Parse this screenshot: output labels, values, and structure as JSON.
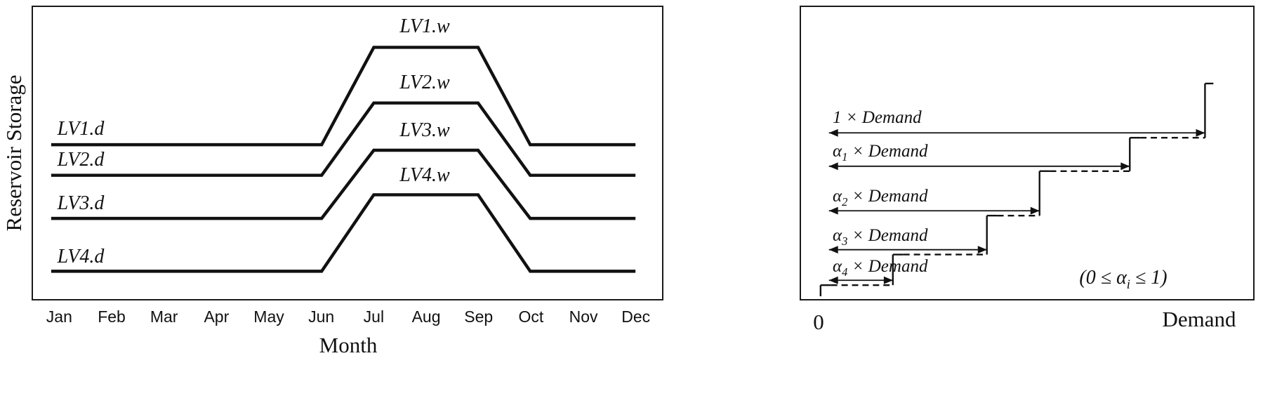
{
  "left_panel": {
    "y_axis_label": "Reservoir Storage",
    "x_axis_label": "Month",
    "months": [
      "Jan",
      "Feb",
      "Mar",
      "Apr",
      "May",
      "Jun",
      "Jul",
      "Aug",
      "Sep",
      "Oct",
      "Nov",
      "Dec"
    ],
    "wet_labels": [
      "LV1.w",
      "LV2.w",
      "LV3.w",
      "LV4.w"
    ],
    "dry_labels": [
      "LV1.d",
      "LV2.d",
      "LV3.d",
      "LV4.d"
    ]
  },
  "right_panel": {
    "origin_label": "0",
    "x_axis_label": "Demand",
    "arrow_labels": [
      {
        "pre": "1",
        "sub": "",
        "post": " × Demand"
      },
      {
        "pre": "α",
        "sub": "1",
        "post": " × Demand"
      },
      {
        "pre": "α",
        "sub": "2",
        "post": " × Demand"
      },
      {
        "pre": "α",
        "sub": "3",
        "post": " × Demand"
      },
      {
        "pre": "α",
        "sub": "4",
        "post": " × Demand"
      }
    ],
    "constraint": {
      "pre": "(0 ≤ α",
      "sub": "i",
      "post": " ≤ 1)"
    }
  },
  "colors": {
    "line": "#111111",
    "border": "#1a1a1a",
    "background": "#ffffff"
  },
  "chart_data": [
    {
      "type": "line",
      "xlabel": "Month",
      "ylabel": "Reservoir Storage",
      "categories": [
        "Jan",
        "Feb",
        "Mar",
        "Apr",
        "May",
        "Jun",
        "Jul",
        "Aug",
        "Sep",
        "Oct",
        "Nov",
        "Dec"
      ],
      "ylim": [
        0,
        1
      ],
      "grid": false,
      "series": [
        {
          "name": "LV1",
          "dry_label": "LV1.d",
          "wet_label": "LV1.w",
          "dry_value": 0.53,
          "wet_value": 0.88,
          "values": [
            0.53,
            0.53,
            0.53,
            0.53,
            0.53,
            0.53,
            0.88,
            0.88,
            0.88,
            0.53,
            0.53,
            0.53
          ]
        },
        {
          "name": "LV2",
          "dry_label": "LV2.d",
          "wet_label": "LV2.w",
          "dry_value": 0.42,
          "wet_value": 0.68,
          "values": [
            0.42,
            0.42,
            0.42,
            0.42,
            0.42,
            0.42,
            0.68,
            0.68,
            0.68,
            0.42,
            0.42,
            0.42
          ]
        },
        {
          "name": "LV3",
          "dry_label": "LV3.d",
          "wet_label": "LV3.w",
          "dry_value": 0.265,
          "wet_value": 0.51,
          "values": [
            0.265,
            0.265,
            0.265,
            0.265,
            0.265,
            0.265,
            0.51,
            0.51,
            0.51,
            0.265,
            0.265,
            0.265
          ]
        },
        {
          "name": "LV4",
          "dry_label": "LV4.d",
          "wet_label": "LV4.w",
          "dry_value": 0.075,
          "wet_value": 0.35,
          "values": [
            0.075,
            0.075,
            0.075,
            0.075,
            0.075,
            0.075,
            0.35,
            0.35,
            0.35,
            0.075,
            0.075,
            0.075
          ]
        }
      ]
    },
    {
      "type": "line",
      "subtype": "staircase",
      "xlabel": "Demand",
      "x_origin_label": "0",
      "annotation": "(0 ≤ αi ≤ 1)",
      "series": [
        {
          "name": "1 × Demand",
          "fraction": 1.0
        },
        {
          "name": "α1 × Demand",
          "fraction": 0.8
        },
        {
          "name": "α2 × Demand",
          "fraction": 0.56
        },
        {
          "name": "α3 × Demand",
          "fraction": 0.42
        },
        {
          "name": "α4 × Demand",
          "fraction": 0.17
        }
      ]
    }
  ]
}
